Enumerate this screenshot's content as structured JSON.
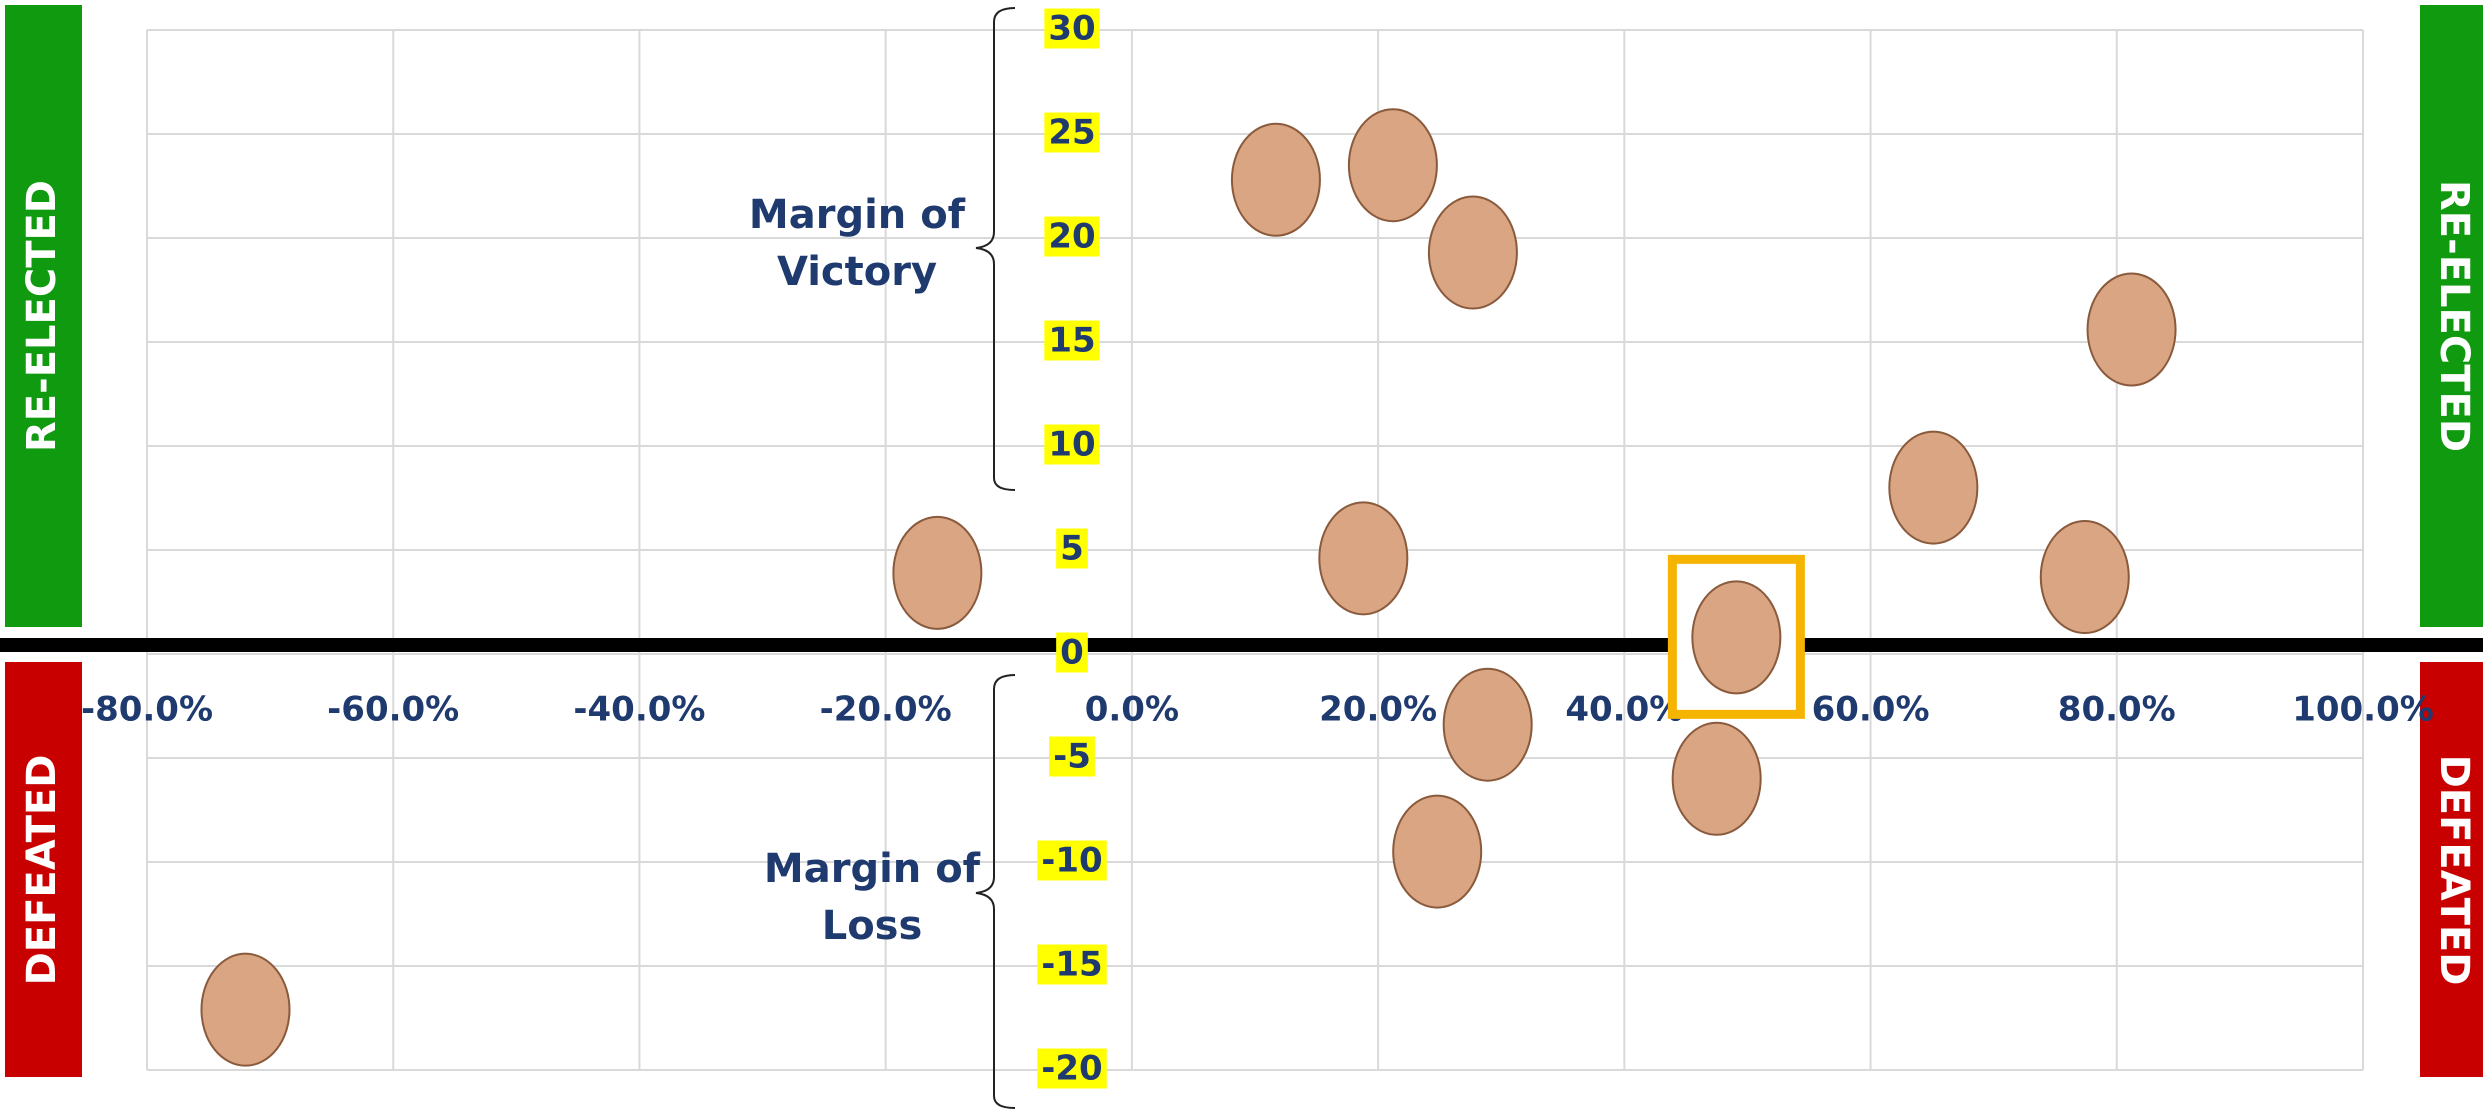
{
  "chart_data": {
    "type": "scatter",
    "x": [
      11.7,
      21.2,
      27.7,
      81.2,
      65.1,
      77.4,
      -15.8,
      18.8,
      49.1,
      28.9,
      47.5,
      24.8,
      -72.0
    ],
    "values": [
      22.8,
      23.5,
      19.3,
      15.6,
      8.0,
      3.7,
      3.9,
      4.6,
      0.8,
      -3.4,
      -6.0,
      -9.5,
      -17.1
    ],
    "color": "#d9a583",
    "highlight": {
      "index": 8,
      "color": "#f5b400"
    },
    "xlim": [
      -80,
      100
    ],
    "xticks": [
      {
        "value": -80,
        "label": "-80.0%"
      },
      {
        "value": -60,
        "label": "-60.0%"
      },
      {
        "value": -40,
        "label": "-40.0%"
      },
      {
        "value": -20,
        "label": "-20.0%"
      },
      {
        "value": 0,
        "label": "0.0%"
      },
      {
        "value": 20,
        "label": "20.0%"
      },
      {
        "value": 40,
        "label": "40.0%"
      },
      {
        "value": 60,
        "label": "60.0%"
      },
      {
        "value": 80,
        "label": "80.0%"
      },
      {
        "value": 100,
        "label": "100.0%"
      }
    ],
    "ylim": [
      -20,
      30
    ],
    "yticks": [
      -20,
      -15,
      -10,
      -5,
      0,
      5,
      10,
      15,
      20,
      25,
      30
    ],
    "grid": true,
    "annotations": {
      "victory": [
        "Margin of",
        "Victory"
      ],
      "loss": [
        "Margin of",
        "Loss"
      ]
    },
    "banners": {
      "left_top": "RE-ELECTED",
      "left_bottom": "DEFEATED",
      "right_top": "RE-ELECTED",
      "right_bottom": "DEFEATED"
    }
  }
}
